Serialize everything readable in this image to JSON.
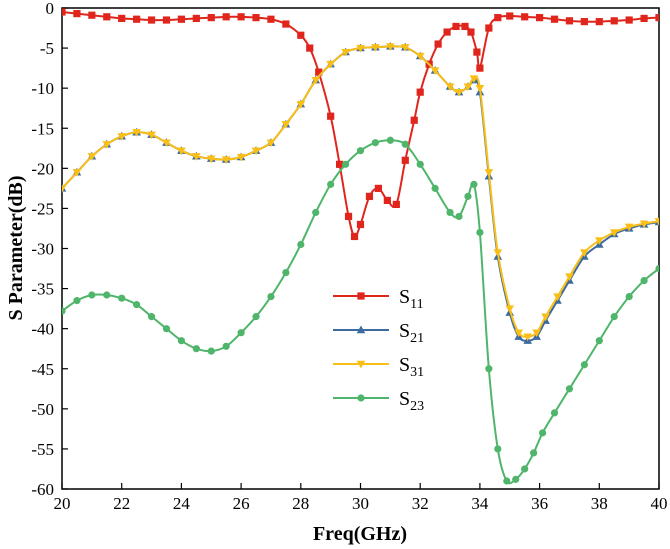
{
  "chart_data": {
    "type": "line",
    "xlabel": "Freq(GHz)",
    "ylabel": "S Parameter(dB)",
    "xlim": [
      20,
      40
    ],
    "ylim": [
      -60,
      0
    ],
    "xticks": [
      20,
      22,
      24,
      26,
      28,
      30,
      32,
      34,
      36,
      38,
      40
    ],
    "yticks": [
      0,
      -5,
      -10,
      -15,
      -20,
      -25,
      -30,
      -35,
      -40,
      -45,
      -50,
      -55,
      -60
    ],
    "legend_placement": "center",
    "grid": false,
    "series": [
      {
        "name": "S11",
        "name_main": "S",
        "name_sub": "11",
        "color": "#e0261c",
        "marker": "square",
        "x": [
          20.0,
          20.5,
          21.0,
          21.5,
          22.0,
          22.5,
          23.0,
          23.5,
          24.0,
          24.5,
          25.0,
          25.5,
          26.0,
          26.5,
          27.0,
          27.5,
          28.0,
          28.3,
          28.6,
          29.0,
          29.3,
          29.6,
          29.8,
          30.0,
          30.3,
          30.6,
          30.9,
          31.2,
          31.5,
          31.8,
          32.0,
          32.3,
          32.6,
          32.9,
          33.2,
          33.5,
          33.7,
          33.9,
          34.0,
          34.3,
          34.6,
          35.0,
          35.5,
          36.0,
          36.5,
          37.0,
          37.5,
          38.0,
          38.5,
          39.0,
          39.5,
          40.0
        ],
        "y": [
          -0.5,
          -0.7,
          -0.9,
          -1.1,
          -1.3,
          -1.4,
          -1.5,
          -1.5,
          -1.4,
          -1.3,
          -1.2,
          -1.1,
          -1.1,
          -1.2,
          -1.4,
          -2.0,
          -3.4,
          -5.0,
          -8.0,
          -13.5,
          -19.5,
          -26.0,
          -28.5,
          -27.0,
          -23.5,
          -22.5,
          -24.0,
          -24.5,
          -19.0,
          -14.0,
          -10.5,
          -7.0,
          -4.5,
          -3.0,
          -2.3,
          -2.3,
          -3.0,
          -5.5,
          -7.5,
          -2.5,
          -1.2,
          -1.0,
          -1.1,
          -1.2,
          -1.4,
          -1.6,
          -1.7,
          -1.7,
          -1.6,
          -1.5,
          -1.3,
          -1.2
        ]
      },
      {
        "name": "S21",
        "name_main": "S",
        "name_sub": "21",
        "color": "#3d6b9f",
        "marker": "triangle-up",
        "x": [
          20.0,
          20.5,
          21.0,
          21.5,
          22.0,
          22.5,
          23.0,
          23.5,
          24.0,
          24.5,
          25.0,
          25.5,
          26.0,
          26.5,
          27.0,
          27.5,
          28.0,
          28.5,
          29.0,
          29.5,
          30.0,
          30.5,
          31.0,
          31.5,
          32.0,
          32.5,
          33.0,
          33.3,
          33.6,
          33.8,
          34.0,
          34.3,
          34.6,
          35.0,
          35.3,
          35.6,
          35.9,
          36.2,
          36.6,
          37.0,
          37.5,
          38.0,
          38.5,
          39.0,
          39.5,
          40.0
        ],
        "y": [
          -22.5,
          -20.5,
          -18.5,
          -17.0,
          -16.0,
          -15.5,
          -15.8,
          -16.8,
          -17.8,
          -18.5,
          -18.8,
          -18.9,
          -18.6,
          -17.8,
          -16.8,
          -14.5,
          -12.0,
          -9.0,
          -7.0,
          -5.5,
          -5.0,
          -4.9,
          -4.8,
          -4.9,
          -6.0,
          -7.8,
          -9.8,
          -10.5,
          -9.8,
          -9.0,
          -10.5,
          -21.0,
          -31.0,
          -38.0,
          -41.0,
          -41.5,
          -41.0,
          -39.0,
          -36.5,
          -34.0,
          -31.0,
          -29.5,
          -28.2,
          -27.5,
          -27.0,
          -26.7
        ]
      },
      {
        "name": "S31",
        "name_main": "S",
        "name_sub": "31",
        "color": "#f8bf18",
        "marker": "triangle-down",
        "x": [
          20.0,
          20.5,
          21.0,
          21.5,
          22.0,
          22.5,
          23.0,
          23.5,
          24.0,
          24.5,
          25.0,
          25.5,
          26.0,
          26.5,
          27.0,
          27.5,
          28.0,
          28.5,
          29.0,
          29.5,
          30.0,
          30.5,
          31.0,
          31.5,
          32.0,
          32.5,
          33.0,
          33.3,
          33.6,
          33.8,
          34.0,
          34.3,
          34.6,
          35.0,
          35.3,
          35.6,
          35.9,
          36.2,
          36.6,
          37.0,
          37.5,
          38.0,
          38.5,
          39.0,
          39.5,
          40.0
        ],
        "y": [
          -22.5,
          -20.5,
          -18.5,
          -17.0,
          -16.0,
          -15.5,
          -15.8,
          -16.8,
          -17.8,
          -18.5,
          -18.8,
          -18.9,
          -18.6,
          -17.8,
          -16.8,
          -14.5,
          -12.0,
          -9.0,
          -7.0,
          -5.5,
          -5.0,
          -4.9,
          -4.8,
          -4.9,
          -6.0,
          -7.8,
          -9.8,
          -10.5,
          -9.8,
          -8.8,
          -10.0,
          -20.5,
          -30.5,
          -37.5,
          -40.5,
          -41.0,
          -40.5,
          -38.5,
          -36.0,
          -33.5,
          -30.5,
          -29.0,
          -28.0,
          -27.3,
          -26.9,
          -26.6
        ]
      },
      {
        "name": "S23",
        "name_main": "S",
        "name_sub": "23",
        "color": "#4fb56a",
        "marker": "circle",
        "x": [
          20.0,
          20.5,
          21.0,
          21.5,
          22.0,
          22.5,
          23.0,
          23.5,
          24.0,
          24.5,
          25.0,
          25.5,
          26.0,
          26.5,
          27.0,
          27.5,
          28.0,
          28.5,
          29.0,
          29.5,
          30.0,
          30.5,
          31.0,
          31.5,
          32.0,
          32.5,
          33.0,
          33.3,
          33.6,
          33.8,
          34.0,
          34.3,
          34.6,
          34.9,
          35.2,
          35.5,
          35.8,
          36.1,
          36.5,
          37.0,
          37.5,
          38.0,
          38.5,
          39.0,
          39.5,
          40.0
        ],
        "y": [
          -37.8,
          -36.5,
          -35.8,
          -35.8,
          -36.2,
          -37.0,
          -38.5,
          -40.0,
          -41.5,
          -42.5,
          -42.8,
          -42.2,
          -40.5,
          -38.5,
          -36.0,
          -33.0,
          -29.5,
          -25.5,
          -22.0,
          -19.5,
          -17.8,
          -16.8,
          -16.5,
          -17.0,
          -19.5,
          -22.5,
          -25.5,
          -26.0,
          -23.5,
          -22.0,
          -28.0,
          -45.0,
          -55.0,
          -59.0,
          -58.8,
          -57.5,
          -55.5,
          -53.0,
          -50.5,
          -47.5,
          -44.5,
          -41.5,
          -38.5,
          -36.0,
          -34.0,
          -32.5
        ]
      }
    ]
  }
}
